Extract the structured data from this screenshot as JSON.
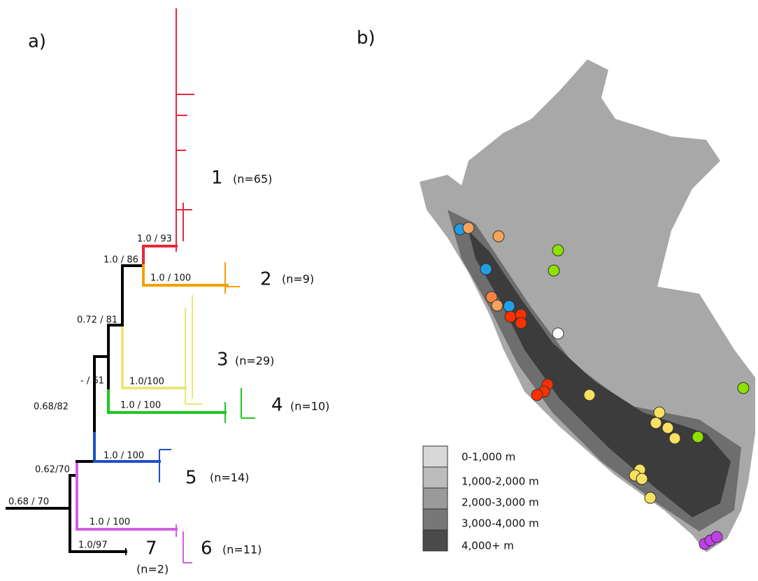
{
  "panel_a": {
    "label": "a)",
    "supports": [
      "0.68 / 70",
      "1.0/97",
      "0.62/70",
      "1.0 / 100",
      "0.68/82",
      "1.0 / 100",
      "- / 61",
      "1.0 / 100",
      "0.72 / 81",
      "1.0/100",
      "1.0 / 86",
      "1.0 / 100",
      "1.0 / 93"
    ],
    "clades": [
      {
        "number": "1",
        "count": "(n=65)"
      },
      {
        "number": "2",
        "count": "(n=9)"
      },
      {
        "number": "3",
        "count": "(n=29)"
      },
      {
        "number": "4",
        "count": "(n=10)"
      },
      {
        "number": "5",
        "count": "(n=14)"
      },
      {
        "number": "6",
        "count": "(n=11)"
      },
      {
        "number": "7",
        "count": "(n=2)"
      }
    ]
  },
  "panel_b": {
    "label": "b)",
    "legend": [
      "0-1,000 m",
      "1,000-2,000 m",
      "2,000-3,000 m",
      "3,000-4,000 m",
      "4,000+ m"
    ]
  }
}
